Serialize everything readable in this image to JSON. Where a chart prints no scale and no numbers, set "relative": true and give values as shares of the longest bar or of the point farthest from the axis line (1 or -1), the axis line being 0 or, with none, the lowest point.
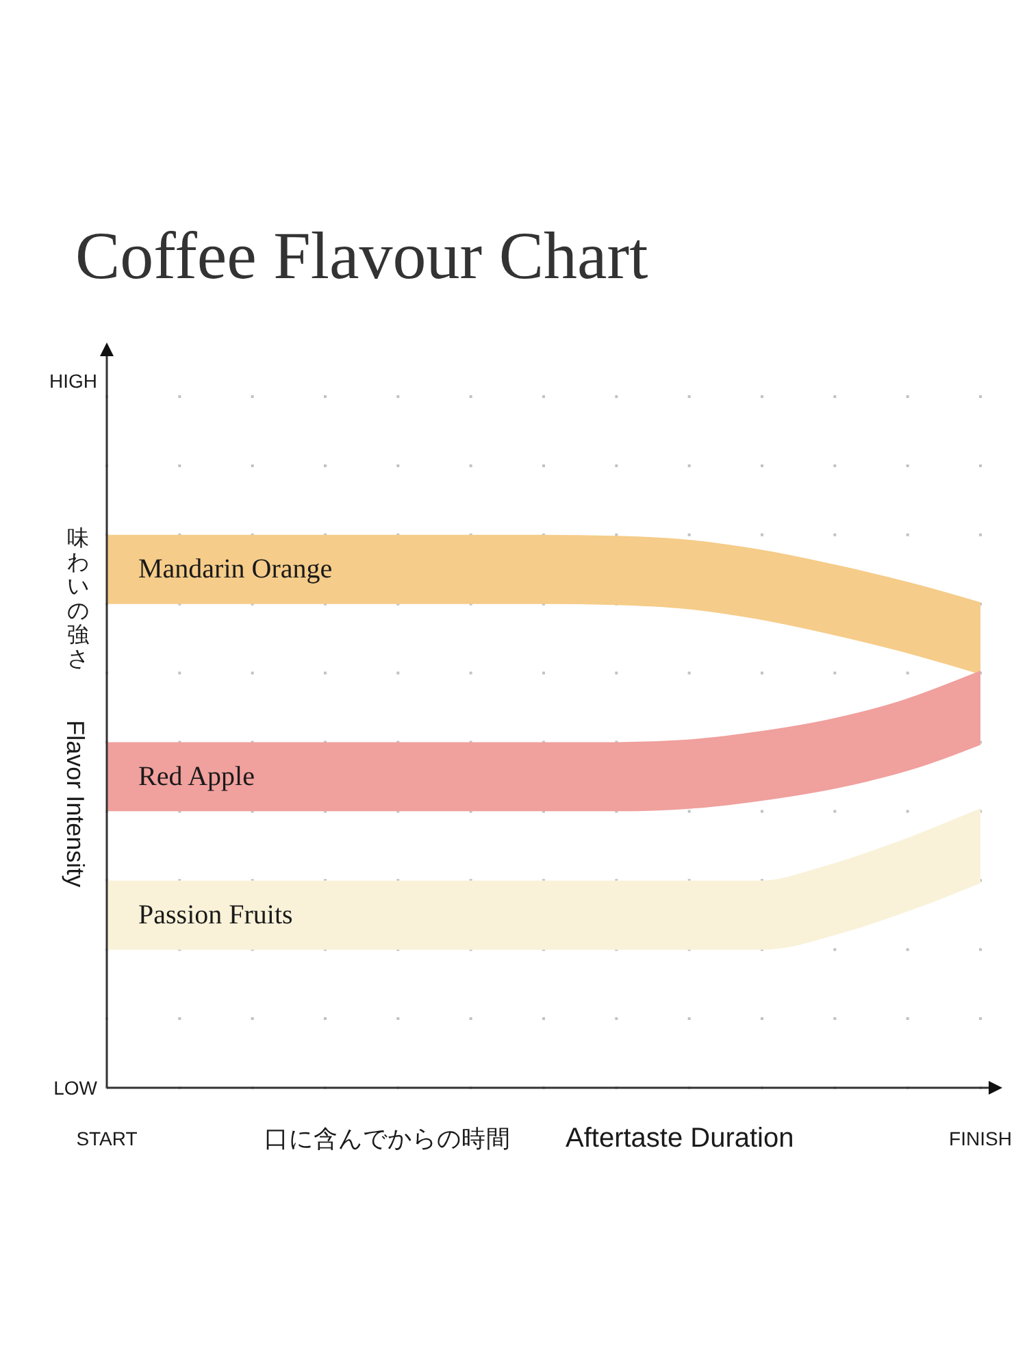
{
  "chart_data": {
    "type": "line",
    "title": "Coffee Flavour Chart",
    "xlabel": "口に含んでからの時間 Aftertaste Duration",
    "ylabel": "味わいの強さ Flavor Intensity",
    "relative": true,
    "categories": [
      "START",
      null,
      null,
      null,
      null,
      null,
      null,
      null,
      null,
      null,
      null,
      null,
      "FINISH"
    ],
    "grid": "x",
    "annotations": [
      "HIGH",
      "LOW"
    ],
    "series": [
      {
        "name": "Mandarin Orange",
        "color": "#f5cc89",
        "values": [
          1,
          1,
          1,
          1,
          1,
          1,
          1,
          0.998,
          0.99,
          0.97,
          0.941,
          0.907,
          0.867
        ]
      },
      {
        "name": "Red Apple",
        "color": "#f0a09d",
        "values": [
          0.6,
          0.6,
          0.6,
          0.6,
          0.6,
          0.6,
          0.6,
          0.6,
          0.605,
          0.621,
          0.645,
          0.681,
          0.733
        ]
      },
      {
        "name": "Passion Fruits",
        "color": "#f9f2d9",
        "values": [
          0.333,
          0.333,
          0.333,
          0.333,
          0.333,
          0.333,
          0.333,
          0.333,
          0.333,
          0.333,
          0.364,
          0.411,
          0.467
        ]
      }
    ]
  }
}
